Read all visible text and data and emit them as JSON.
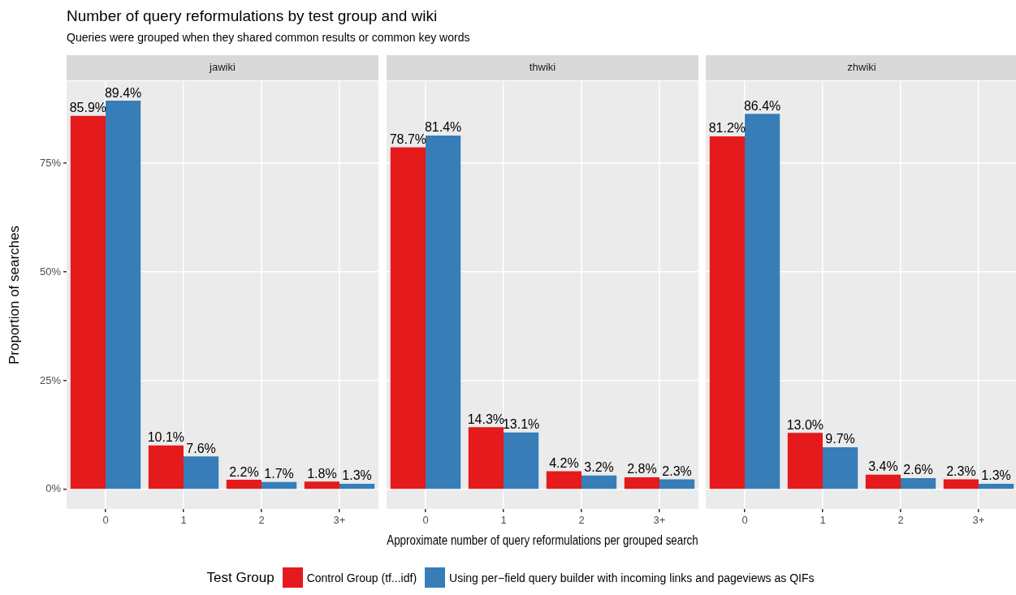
{
  "chart_data": [
    {
      "type": "bar",
      "title": "jawiki",
      "annotations": [
        "Number of query reformulations by test group and wiki",
        "Queries were grouped when they shared common results or common key words"
      ],
      "ylabel": "Proportion of searches",
      "categories": [
        "0",
        "1",
        "2",
        "3+"
      ],
      "series": [
        {
          "name": "Control Group (tf...idf)",
          "color": "#e41a1c",
          "values": [
            85.9,
            10.1,
            2.2,
            1.8
          ],
          "value_labels": [
            "85.9%",
            "10.1%",
            "2.2%",
            "1.8%"
          ]
        },
        {
          "name": "Using per−field query builder with incoming links and pageviews as QIFs",
          "color": "#377eb8",
          "values": [
            89.4,
            7.6,
            1.7,
            1.3
          ],
          "value_labels": [
            "89.4%",
            "7.6%",
            "1.7%",
            "1.3%"
          ]
        }
      ],
      "ylim": [
        -4.5,
        93.9
      ],
      "yticks": [
        {
          "value": 0,
          "label": "0%"
        },
        {
          "value": 25,
          "label": "25%"
        },
        {
          "value": 50,
          "label": "50%"
        },
        {
          "value": 75,
          "label": "75%"
        }
      ],
      "grid": true,
      "legend": "bottom",
      "legend_title": "Test Group"
    },
    {
      "type": "bar",
      "title": "thwiki",
      "xlabel": "Approximate number of query reformulations per grouped search",
      "categories": [
        "0",
        "1",
        "2",
        "3+"
      ],
      "series": [
        {
          "color": "#e41a1c",
          "values": [
            78.7,
            14.3,
            4.2,
            2.8
          ],
          "value_labels": [
            "78.7%",
            "14.3%",
            "4.2%",
            "2.8%"
          ]
        },
        {
          "color": "#377eb8",
          "values": [
            81.4,
            13.1,
            3.2,
            2.3
          ],
          "value_labels": [
            "81.4%",
            "13.1%",
            "3.2%",
            "2.3%"
          ]
        }
      ],
      "ylim": [
        -4.5,
        93.9
      ],
      "yticks": [
        {
          "value": 0,
          "label": null
        },
        {
          "value": 25,
          "label": null
        },
        {
          "value": 50,
          "label": null
        },
        {
          "value": 75,
          "label": null
        }
      ],
      "grid": true,
      "tick_labels": "x"
    },
    {
      "type": "bar",
      "title": "zhwiki",
      "categories": [
        "0",
        "1",
        "2",
        "3+"
      ],
      "series": [
        {
          "color": "#e41a1c",
          "values": [
            81.2,
            13.0,
            3.4,
            2.3
          ],
          "value_labels": [
            "81.2%",
            "13.0%",
            "3.4%",
            "2.3%"
          ]
        },
        {
          "color": "#377eb8",
          "values": [
            86.4,
            9.7,
            2.6,
            1.3
          ],
          "value_labels": [
            "86.4%",
            "9.7%",
            "2.6%",
            "1.3%"
          ]
        }
      ],
      "ylim": [
        -4.5,
        93.9
      ],
      "yticks": [
        {
          "value": 0,
          "label": null
        },
        {
          "value": 25,
          "label": null
        },
        {
          "value": 50,
          "label": null
        },
        {
          "value": 75,
          "label": null
        }
      ],
      "grid": true,
      "tick_labels": "x"
    }
  ]
}
